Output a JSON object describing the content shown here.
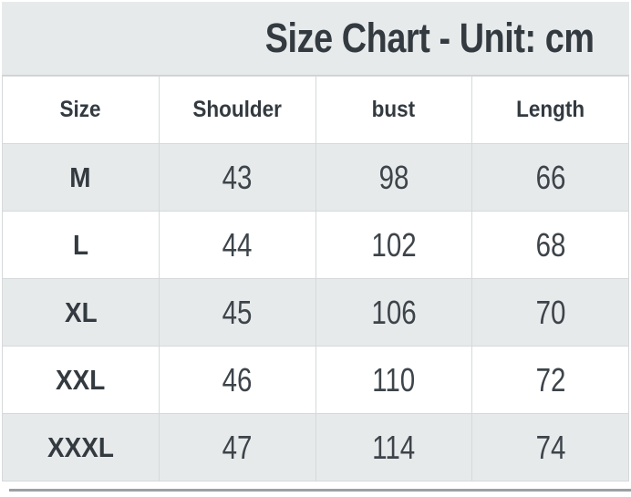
{
  "chart_data": {
    "type": "table",
    "title": "Size Chart - Unit: cm",
    "unit": "cm",
    "columns": [
      "Size",
      "Shoulder",
      "bust",
      "Length"
    ],
    "rows": [
      [
        "M",
        "43",
        "98",
        "66"
      ],
      [
        "L",
        "44",
        "102",
        "68"
      ],
      [
        "XL",
        "45",
        "106",
        "70"
      ],
      [
        "XXL",
        "46",
        "110",
        "72"
      ],
      [
        "XXXL",
        "47",
        "114",
        "74"
      ]
    ]
  },
  "colors": {
    "band_gray": "#e7eaeb",
    "band_border": "#ccd1d2",
    "row_alt_gray": "#e7eaeb",
    "row_white": "#ffffff",
    "text_dark": "#333a40",
    "text_number": "#3d444a",
    "cell_border": "#d5d9da",
    "bottom_rule": "#9aa0a3"
  }
}
